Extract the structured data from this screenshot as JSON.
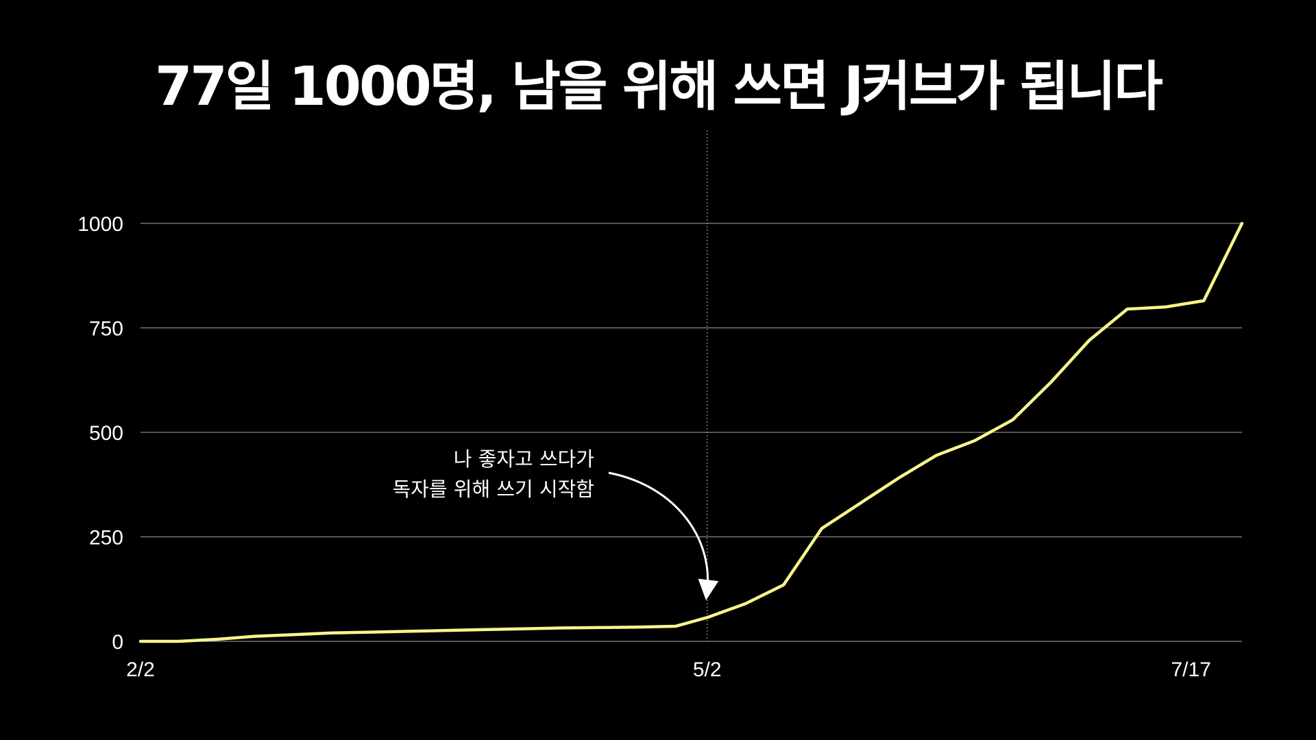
{
  "title": "77일 1000명, 남을 위해 쓰면 J커브가 됩니다",
  "colors": {
    "background": "#000000",
    "line": "#f7f48c",
    "grid": "#8a8a8a",
    "text": "#ffffff"
  },
  "chart_data": {
    "type": "line",
    "title": "77일 1000명, 남을 위해 쓰면 J커브가 됩니다",
    "xlabel": "",
    "ylabel": "",
    "x_tick_labels": [
      "2/2",
      "5/2",
      "7/17"
    ],
    "y_ticks": [
      0,
      250,
      500,
      750,
      1000
    ],
    "y_tick_labels": [
      "0",
      "250",
      "500",
      "750",
      "1000"
    ],
    "ylim": [
      0,
      1000
    ],
    "grid": true,
    "x_axis": "date",
    "series": [
      {
        "x": [
          "2/2",
          "2/8",
          "2/14",
          "2/20",
          "2/26",
          "3/4",
          "3/10",
          "3/16",
          "3/22",
          "3/28",
          "4/3",
          "4/9",
          "4/15",
          "4/21",
          "4/27",
          "5/2",
          "5/8",
          "5/14",
          "5/20",
          "5/26",
          "6/1",
          "6/7",
          "6/13",
          "6/19",
          "6/25",
          "7/1",
          "7/7",
          "7/13",
          "7/19",
          "7/25"
        ],
        "values": [
          0,
          0,
          5,
          12,
          16,
          20,
          22,
          24,
          26,
          28,
          30,
          32,
          33,
          34,
          36,
          57,
          90,
          135,
          270,
          330,
          390,
          445,
          480,
          530,
          620,
          720,
          795,
          800,
          815,
          1000
        ]
      }
    ],
    "annotations": [
      {
        "text_lines": [
          "나 좋자고 쓰다가",
          "독자를 위해 쓰기 시작함"
        ],
        "target_x": "5/2",
        "target_y": 57
      }
    ]
  }
}
